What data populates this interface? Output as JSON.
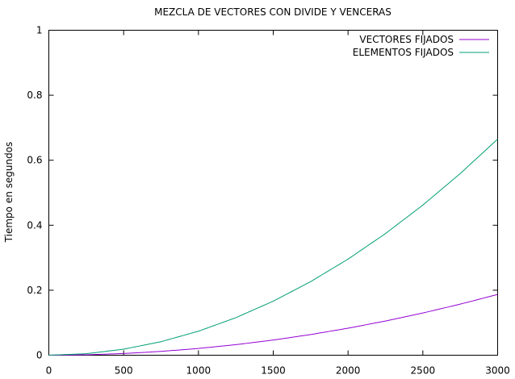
{
  "chart_data": {
    "type": "line",
    "title": "MEZCLA DE VECTORES CON DIVIDE Y VENCERAS",
    "xlabel": "",
    "ylabel": "Tiempo en segundos",
    "xlim": [
      0,
      3000
    ],
    "ylim": [
      0,
      1
    ],
    "grid": false,
    "legend_position": "top-right",
    "xticks": [
      0,
      500,
      1000,
      1500,
      2000,
      2500,
      3000
    ],
    "yticks": [
      0,
      0.2,
      0.4,
      0.6,
      0.8,
      1
    ],
    "xtick_labels": [
      "0",
      "500",
      "1000",
      "1500",
      "2000",
      "2500",
      "3000"
    ],
    "ytick_labels": [
      "0",
      "0.2",
      "0.4",
      "0.6",
      "0.8",
      "1"
    ],
    "x": [
      0,
      250,
      500,
      750,
      1000,
      1250,
      1500,
      1750,
      2000,
      2250,
      2500,
      2750,
      3000
    ],
    "series": [
      {
        "name": "VECTORES FIJADOS",
        "color": "#9400d3",
        "values": [
          0,
          0.0013,
          0.0052,
          0.0117,
          0.0208,
          0.0325,
          0.0467,
          0.0636,
          0.0831,
          0.1052,
          0.1299,
          0.1572,
          0.187
        ]
      },
      {
        "name": "ELEMENTOS FIJADOS",
        "color": "#009e73",
        "values": [
          0,
          0.0046,
          0.0185,
          0.0416,
          0.0739,
          0.1155,
          0.1663,
          0.2264,
          0.2957,
          0.3742,
          0.462,
          0.559,
          0.665
        ]
      }
    ]
  }
}
